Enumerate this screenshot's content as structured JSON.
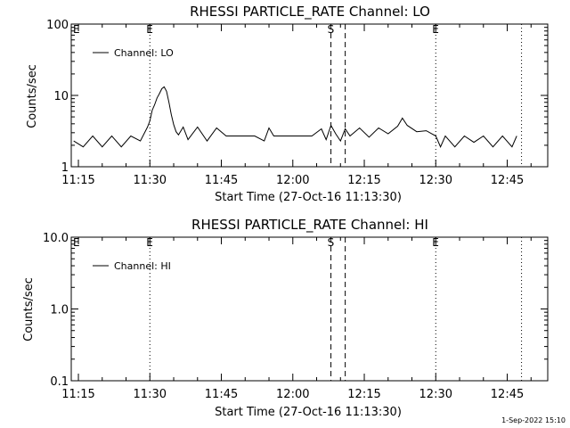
{
  "chart_data": [
    {
      "type": "line",
      "title": "RHESSI PARTICLE_RATE Channel: LO",
      "xlabel": "Start Time (27-Oct-16 11:13:30)",
      "ylabel": "Counts/sec",
      "y_scale": "log",
      "ylim": [
        1,
        100
      ],
      "y_ticks": [
        {
          "v": 1,
          "label": "1"
        },
        {
          "v": 10,
          "label": "10"
        },
        {
          "v": 100,
          "label": "100"
        }
      ],
      "xlim": [
        "11:13:30",
        "12:53:30"
      ],
      "x_ticks": [
        "11:15",
        "11:30",
        "11:45",
        "12:00",
        "12:15",
        "12:30",
        "12:45"
      ],
      "legend": {
        "placement": "top-left",
        "label": "Channel: LO"
      },
      "markers": [
        {
          "time": "11:30",
          "style": "dotted",
          "label": "E"
        },
        {
          "time": "12:08",
          "style": "dashed",
          "label": "S"
        },
        {
          "time": "12:11",
          "style": "dashed",
          "label": ""
        },
        {
          "time": "12:30",
          "style": "dotted",
          "label": "E"
        },
        {
          "time": "12:48",
          "style": "dotted",
          "label": ""
        }
      ],
      "series": [
        {
          "x": [
            "11:14:00",
            "11:16:00",
            "11:18:00",
            "11:20:00",
            "11:22:00",
            "11:24:00",
            "11:26:00",
            "11:28:00",
            "11:29:30",
            "11:30:00",
            "11:30:30",
            "11:31:00",
            "11:31:30",
            "11:32:00",
            "11:32:30",
            "11:33:00",
            "11:33:30",
            "11:34:00",
            "11:34:30",
            "11:35:00",
            "11:35:30",
            "11:36:00",
            "11:37:00",
            "11:38:00",
            "11:40:00",
            "11:42:00",
            "11:44:00",
            "11:46:00",
            "11:48:00",
            "11:50:00",
            "11:52:00",
            "11:54:00",
            "11:55:00",
            "11:56:00",
            "11:58:00",
            "12:00:00",
            "12:02:00",
            "12:04:00",
            "12:06:00",
            "12:07:00",
            "12:08:00",
            "12:09:00",
            "12:10:00",
            "12:11:00",
            "12:12:00",
            "12:14:00",
            "12:16:00",
            "12:18:00",
            "12:20:00",
            "12:22:00",
            "12:23:00",
            "12:24:00",
            "12:26:00",
            "12:28:00",
            "12:30:00",
            "12:31:00",
            "12:32:00",
            "12:34:00",
            "12:36:00",
            "12:38:00",
            "12:40:00",
            "12:42:00",
            "12:44:00",
            "12:46:00",
            "12:47:00"
          ],
          "y": [
            2.3,
            1.9,
            2.7,
            1.9,
            2.7,
            1.9,
            2.7,
            2.3,
            3.6,
            4.4,
            6.2,
            7.4,
            9.2,
            10.6,
            12.4,
            13.2,
            11.4,
            8.0,
            5.4,
            3.9,
            3.1,
            2.8,
            3.6,
            2.4,
            3.6,
            2.3,
            3.5,
            2.7,
            2.7,
            2.7,
            2.7,
            2.3,
            3.5,
            2.7,
            2.7,
            2.7,
            2.7,
            2.7,
            3.4,
            2.4,
            3.8,
            2.9,
            2.3,
            3.4,
            2.7,
            3.5,
            2.6,
            3.5,
            2.9,
            3.7,
            4.8,
            3.8,
            3.1,
            3.2,
            2.7,
            1.9,
            2.7,
            1.9,
            2.7,
            2.2,
            2.7,
            1.9,
            2.7,
            1.9,
            2.7
          ]
        }
      ]
    },
    {
      "type": "line",
      "title": "RHESSI PARTICLE_RATE Channel: HI",
      "xlabel": "Start Time (27-Oct-16 11:13:30)",
      "ylabel": "Counts/sec",
      "y_scale": "log",
      "ylim": [
        0.1,
        10
      ],
      "y_ticks": [
        {
          "v": 0.1,
          "label": "0.1"
        },
        {
          "v": 1,
          "label": "1.0"
        },
        {
          "v": 10,
          "label": "10.0"
        }
      ],
      "xlim": [
        "11:13:30",
        "12:53:30"
      ],
      "x_ticks": [
        "11:15",
        "11:30",
        "11:45",
        "12:00",
        "12:15",
        "12:30",
        "12:45"
      ],
      "legend": {
        "placement": "top-left",
        "label": "Channel: HI"
      },
      "markers": [
        {
          "time": "11:30",
          "style": "dotted",
          "label": "E"
        },
        {
          "time": "12:08",
          "style": "dashed",
          "label": "S"
        },
        {
          "time": "12:11",
          "style": "dashed",
          "label": ""
        },
        {
          "time": "12:30",
          "style": "dotted",
          "label": "E"
        },
        {
          "time": "12:48",
          "style": "dotted",
          "label": ""
        }
      ],
      "series": []
    }
  ],
  "footer": {
    "timestamp": "1-Sep-2022 15:10"
  }
}
